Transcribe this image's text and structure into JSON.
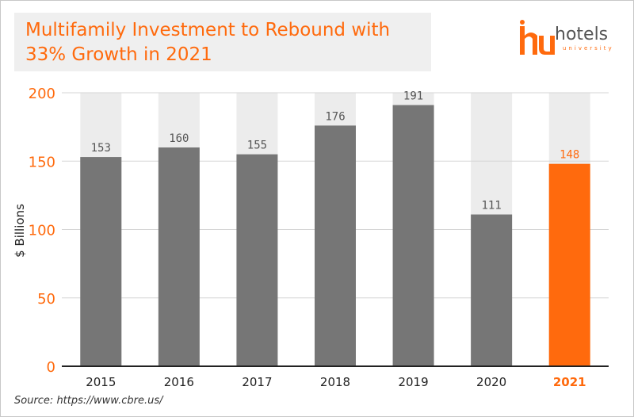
{
  "title": {
    "line1": "Multifamily Investment to Rebound with",
    "line2": "33% Growth in 2021"
  },
  "logo": {
    "word": "hotels",
    "sub": "university"
  },
  "source_label": "Source: https://www.cbre.us/",
  "colors": {
    "accent": "#ff6a0d",
    "bar": "#767676",
    "bar_track": "#ececec",
    "tick_label_y": "#ff6a0d",
    "text_dark": "#222222",
    "value_label": "#555555"
  },
  "chart_data": {
    "type": "bar",
    "title": "Multifamily Investment to Rebound with 33% Growth in 2021",
    "xlabel": "",
    "ylabel": "$ Billions",
    "categories": [
      "2015",
      "2016",
      "2017",
      "2018",
      "2019",
      "2020",
      "2021"
    ],
    "values": [
      153,
      160,
      155,
      176,
      191,
      111,
      148
    ],
    "highlight_category": "2021",
    "ylim": [
      0,
      200
    ],
    "yticks": [
      0,
      50,
      100,
      150,
      200
    ],
    "grid": true,
    "background_track": true
  }
}
